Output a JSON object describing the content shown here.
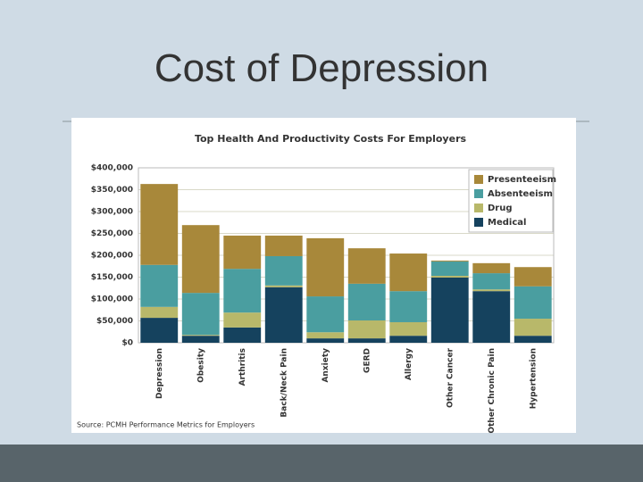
{
  "slide_title": "Cost of Depression",
  "chart_data": {
    "type": "stacked_bar",
    "title": "Top Health And Productivity Costs For Employers",
    "source": "Source: PCMH Performance Metrics for Employers",
    "categories": [
      "Depression",
      "Obesity",
      "Arthritis",
      "Back/Neck Pain",
      "Anxiety",
      "GERD",
      "Allergy",
      "Other Cancer",
      "Other Chronic Pain",
      "Hypertension"
    ],
    "series": [
      {
        "name": "Medical",
        "color": "#15425e",
        "values": [
          57000,
          16000,
          35000,
          127000,
          10000,
          10000,
          16000,
          149000,
          118000,
          16000
        ]
      },
      {
        "name": "Drug",
        "color": "#b8b86a",
        "values": [
          25000,
          2000,
          34000,
          4000,
          14000,
          41000,
          31000,
          4000,
          4000,
          39000
        ]
      },
      {
        "name": "Absenteeism",
        "color": "#4a9ea0",
        "values": [
          96000,
          96000,
          100000,
          67000,
          82000,
          84000,
          71000,
          33000,
          37000,
          74000
        ]
      },
      {
        "name": "Presenteeism",
        "color": "#a8883a",
        "values": [
          185000,
          155000,
          76000,
          47000,
          133000,
          81000,
          86000,
          2000,
          23000,
          44000
        ]
      }
    ],
    "ylim": [
      0,
      400000
    ],
    "yticks": [
      {
        "value": 0,
        "label": "$0"
      },
      {
        "value": 50000,
        "label": "$50,000"
      },
      {
        "value": 100000,
        "label": "$100,000"
      },
      {
        "value": 150000,
        "label": "$150,000"
      },
      {
        "value": 200000,
        "label": "$200,000"
      },
      {
        "value": 250000,
        "label": "$250,000"
      },
      {
        "value": 300000,
        "label": "$300,000"
      },
      {
        "value": 350000,
        "label": "$350,000"
      },
      {
        "value": 400000,
        "label": "$400,000"
      }
    ],
    "grid": true,
    "legend": "top-right"
  }
}
